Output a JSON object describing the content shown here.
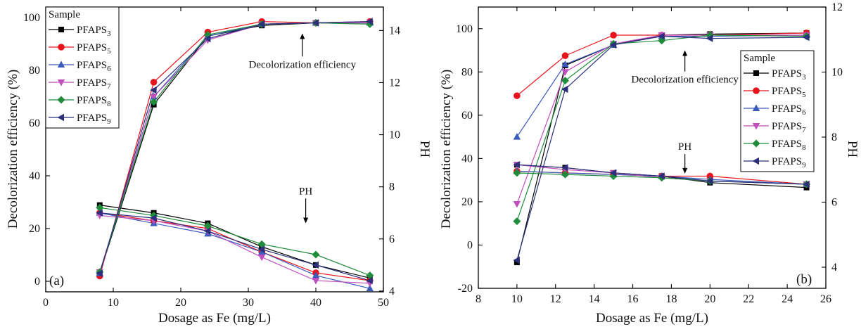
{
  "chart_data": [
    {
      "type": "line",
      "panel_label": "(a)",
      "xlabel": "Dosage as Fe (mg/L)",
      "ylabel": "Decolorization efficiency (%)",
      "y2label": "PH",
      "xlim": [
        0,
        50
      ],
      "ylim": [
        -4,
        104
      ],
      "y2lim": [
        3.97,
        14.9
      ],
      "xticks": [
        0,
        10,
        20,
        30,
        40,
        50
      ],
      "yticks": [
        0,
        20,
        40,
        60,
        80,
        100
      ],
      "y2ticks": [
        4,
        6,
        8,
        10,
        12,
        14
      ],
      "grid": false,
      "legend": {
        "title": "Sample",
        "placement": "top-left",
        "entries": [
          {
            "name": "PFAPS",
            "sub": "3"
          },
          {
            "name": "PFAPS",
            "sub": "5"
          },
          {
            "name": "PFAPS",
            "sub": "6"
          },
          {
            "name": "PFAPS",
            "sub": "7"
          },
          {
            "name": "PFAPS",
            "sub": "8"
          },
          {
            "name": "PFAPS",
            "sub": "9"
          }
        ]
      },
      "annotations": [
        {
          "text": "Decolorization efficiency",
          "x": 38,
          "y": 81,
          "arrow": "up",
          "arrow_to": 94
        },
        {
          "text": "PH",
          "x": 38.5,
          "y": 33,
          "arrow": "down",
          "arrow_to": 22
        }
      ],
      "x": [
        8,
        16,
        24,
        32,
        40,
        48
      ],
      "series": [
        {
          "name": "PFAPS3",
          "color": "#000000",
          "marker": "square",
          "efficiency": [
            3,
            67,
            93,
            97,
            98,
            98
          ],
          "ph": [
            7.3,
            7.0,
            6.6,
            5.7,
            5.0,
            4.5
          ]
        },
        {
          "name": "PFAPS5",
          "color": "#e8141c",
          "marker": "circle",
          "efficiency": [
            2,
            75.5,
            94.5,
            98.5,
            98,
            98.5
          ],
          "ph": [
            7.0,
            6.7,
            6.4,
            5.5,
            4.7,
            4.4
          ]
        },
        {
          "name": "PFAPS6",
          "color": "#3a5bbd",
          "marker": "triangle-up",
          "efficiency": [
            3,
            70,
            93,
            97.5,
            98,
            98
          ],
          "ph": [
            7.0,
            6.6,
            6.2,
            5.5,
            4.6,
            4.1
          ]
        },
        {
          "name": "PFAPS7",
          "color": "#c04fbf",
          "marker": "triangle-down",
          "efficiency": [
            3.5,
            70,
            91.5,
            97.5,
            98,
            98
          ],
          "ph": [
            6.9,
            6.7,
            6.3,
            5.3,
            4.4,
            4.3
          ]
        },
        {
          "name": "PFAPS8",
          "color": "#1e8c3a",
          "marker": "diamond",
          "efficiency": [
            3.5,
            68,
            93.5,
            97.5,
            98,
            97.5
          ],
          "ph": [
            7.2,
            6.9,
            6.5,
            5.8,
            5.4,
            4.6
          ]
        },
        {
          "name": "PFAPS9",
          "color": "#2b2f7c",
          "marker": "triangle-left",
          "efficiency": [
            3,
            72.5,
            92,
            97.5,
            98,
            98.5
          ],
          "ph": [
            7.0,
            6.8,
            6.3,
            5.6,
            5.0,
            4.4
          ]
        }
      ]
    },
    {
      "type": "line",
      "panel_label": "(b)",
      "xlabel": "Dosage as Fe (mg/L)",
      "ylabel": "Decolorization efficiency (%)",
      "y2label": "PH",
      "xlim": [
        8,
        26
      ],
      "ylim": [
        -20,
        110
      ],
      "y2lim": [
        3.35,
        12.0
      ],
      "xticks": [
        8,
        10,
        12,
        14,
        16,
        18,
        20,
        22,
        24,
        26
      ],
      "yticks": [
        -20,
        0,
        20,
        40,
        60,
        80,
        100
      ],
      "y2ticks": [
        4,
        6,
        8,
        10,
        12
      ],
      "grid": false,
      "legend": {
        "title": "Sample",
        "placement": "top-right",
        "entries": [
          {
            "name": "PFAPS",
            "sub": "3"
          },
          {
            "name": "PFAPS",
            "sub": "5"
          },
          {
            "name": "PFAPS",
            "sub": "6"
          },
          {
            "name": "PFAPS",
            "sub": "7"
          },
          {
            "name": "PFAPS",
            "sub": "8"
          },
          {
            "name": "PFAPS",
            "sub": "9"
          }
        ]
      },
      "annotations": [
        {
          "text": "Decolorization efficiency",
          "x": 18.7,
          "y": 75,
          "arrow": "up",
          "arrow_to": 90
        },
        {
          "text": "PH",
          "x": 18.7,
          "y": 44,
          "arrow": "down",
          "arrow_to": 33
        }
      ],
      "x": [
        10,
        12.5,
        15,
        17.5,
        20,
        25
      ],
      "series": [
        {
          "name": "PFAPS3",
          "color": "#000000",
          "marker": "square",
          "efficiency": [
            -8,
            83,
            92.5,
            97,
            97.5,
            98
          ],
          "ph": [
            7.15,
            7.06,
            6.9,
            6.8,
            6.6,
            6.45
          ]
        },
        {
          "name": "PFAPS5",
          "color": "#e8141c",
          "marker": "circle",
          "efficiency": [
            69,
            87.5,
            97,
            97,
            97,
            98
          ],
          "ph": [
            6.95,
            6.9,
            6.85,
            6.8,
            6.8,
            6.55
          ]
        },
        {
          "name": "PFAPS6",
          "color": "#3a5bbd",
          "marker": "triangle-up",
          "efficiency": [
            50,
            83.5,
            92.5,
            96.5,
            96.5,
            97
          ],
          "ph": [
            6.95,
            6.9,
            6.85,
            6.8,
            6.7,
            6.55
          ]
        },
        {
          "name": "PFAPS7",
          "color": "#c04fbf",
          "marker": "triangle-down",
          "efficiency": [
            19,
            80,
            93,
            97,
            97,
            97
          ],
          "ph": [
            7.15,
            7.0,
            6.9,
            6.75,
            6.65,
            6.55
          ]
        },
        {
          "name": "PFAPS8",
          "color": "#1e8c3a",
          "marker": "diamond",
          "efficiency": [
            11,
            76,
            93,
            94.5,
            97,
            96.5
          ],
          "ph": [
            6.9,
            6.85,
            6.8,
            6.75,
            6.65,
            6.55
          ]
        },
        {
          "name": "PFAPS9",
          "color": "#2b2f7c",
          "marker": "triangle-left",
          "efficiency": [
            -7,
            72,
            92.5,
            96.5,
            95.5,
            96
          ],
          "ph": [
            7.15,
            7.06,
            6.9,
            6.8,
            6.65,
            6.55
          ]
        }
      ]
    }
  ]
}
